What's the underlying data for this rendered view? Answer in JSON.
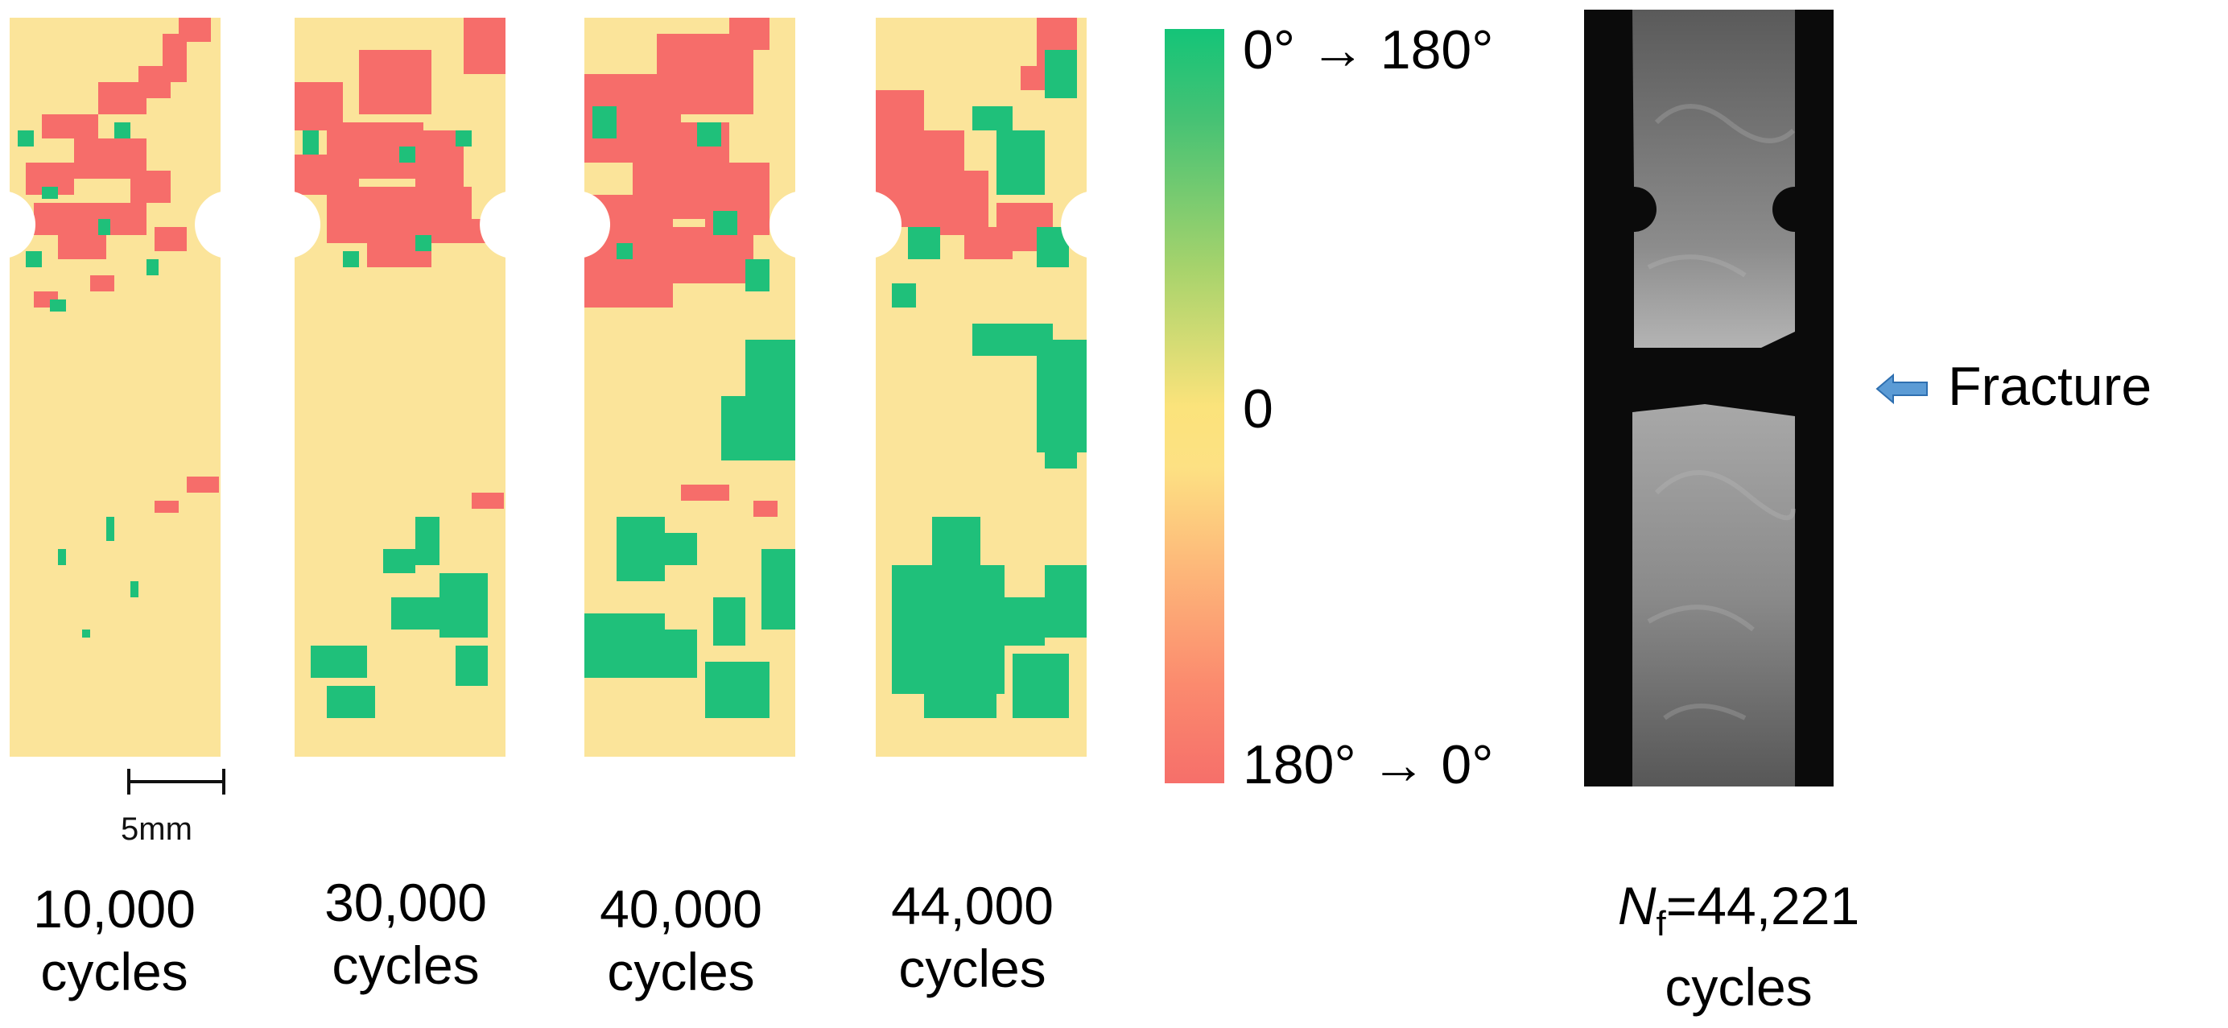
{
  "panels": [
    {
      "caption_count": "10,000",
      "caption_unit": "cycles"
    },
    {
      "caption_count": "30,000",
      "caption_unit": "cycles"
    },
    {
      "caption_count": "40,000",
      "caption_unit": "cycles"
    },
    {
      "caption_count": "44,000",
      "caption_unit": "cycles"
    }
  ],
  "scale_bar": {
    "label": "5mm"
  },
  "colorbar": {
    "top_label": "0° → 180°",
    "mid_label": "0",
    "bottom_label": "180° → 0°"
  },
  "photo": {
    "annotation": "Fracture",
    "caption_symbol": "N",
    "caption_subscript": "f",
    "caption_value": "=44,221",
    "caption_unit": "cycles"
  },
  "colors": {
    "background": "#fbe49a",
    "red": "#f66d6a",
    "green": "#1fc07a",
    "arrow_blue": "#5b9bd5"
  }
}
